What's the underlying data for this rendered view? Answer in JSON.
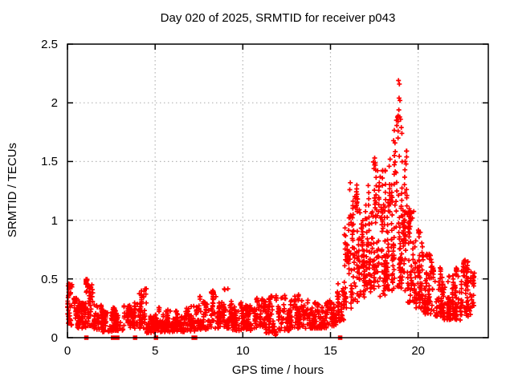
{
  "chart_data": {
    "type": "scatter",
    "title": "Day 020 of 2025, SRMTID for receiver p043",
    "xlabel": "GPS time / hours",
    "ylabel": "SRMTID / TECUs",
    "xlim": [
      0,
      24
    ],
    "ylim": [
      0,
      2.5
    ],
    "xticks": [
      0,
      5,
      10,
      15,
      20
    ],
    "xtick_labels": [
      "0",
      "5",
      "10",
      "15",
      "20"
    ],
    "yticks": [
      0,
      0.5,
      1,
      1.5,
      2,
      2.5
    ],
    "ytick_labels": [
      "0",
      "0.5",
      "1",
      "1.5",
      "2",
      "2.5"
    ],
    "grid": true,
    "legend": "none",
    "colors": {
      "marker": "#ff0000",
      "grid": "#b4b4b4",
      "axis": "#000000"
    },
    "marker": {
      "shape": "plus",
      "size": 7
    },
    "zero_marker": {
      "shape": "filled-square",
      "size": 5.5
    },
    "series_name": "SRMTID",
    "envelope_bins": [
      [
        0.0,
        0.3,
        0.1,
        0.46,
        40,
        1.6
      ],
      [
        0.3,
        0.7,
        0.08,
        0.34,
        48,
        1.8
      ],
      [
        0.7,
        1.05,
        0.08,
        0.3,
        45,
        1.8
      ],
      [
        1.05,
        1.45,
        0.1,
        0.5,
        52,
        1.6
      ],
      [
        1.45,
        2.0,
        0.07,
        0.28,
        62,
        1.8
      ],
      [
        2.0,
        2.6,
        0.05,
        0.22,
        62,
        1.8
      ],
      [
        2.6,
        3.2,
        0.06,
        0.26,
        62,
        1.8
      ],
      [
        3.2,
        3.8,
        0.08,
        0.28,
        60,
        1.8
      ],
      [
        3.8,
        4.5,
        0.08,
        0.42,
        66,
        2.0
      ],
      [
        4.5,
        5.2,
        0.04,
        0.2,
        64,
        1.8
      ],
      [
        5.2,
        5.9,
        0.05,
        0.26,
        64,
        2.0
      ],
      [
        5.9,
        6.6,
        0.05,
        0.24,
        64,
        1.9
      ],
      [
        6.6,
        7.3,
        0.05,
        0.28,
        64,
        1.9
      ],
      [
        7.3,
        8.0,
        0.07,
        0.36,
        64,
        2.0
      ],
      [
        8.0,
        8.7,
        0.08,
        0.4,
        64,
        2.0
      ],
      [
        8.7,
        9.4,
        0.08,
        0.42,
        64,
        2.0
      ],
      [
        9.4,
        10.0,
        0.06,
        0.3,
        58,
        1.8
      ],
      [
        10.0,
        10.6,
        0.06,
        0.28,
        58,
        1.8
      ],
      [
        10.6,
        11.3,
        0.08,
        0.34,
        64,
        1.9
      ],
      [
        11.3,
        12.0,
        0.04,
        0.36,
        62,
        1.9
      ],
      [
        12.0,
        12.7,
        0.06,
        0.36,
        64,
        1.9
      ],
      [
        12.7,
        13.4,
        0.08,
        0.38,
        64,
        1.9
      ],
      [
        13.4,
        14.1,
        0.08,
        0.32,
        64,
        1.8
      ],
      [
        14.1,
        14.8,
        0.08,
        0.3,
        64,
        1.8
      ],
      [
        14.8,
        15.4,
        0.1,
        0.32,
        56,
        1.8
      ],
      [
        15.4,
        15.8,
        0.14,
        0.55,
        42,
        1.5
      ],
      [
        15.8,
        16.2,
        0.25,
        1.05,
        52,
        1.5
      ],
      [
        16.2,
        16.6,
        0.3,
        1.3,
        56,
        1.5
      ],
      [
        16.6,
        17.0,
        0.33,
        1.1,
        56,
        1.5
      ],
      [
        17.0,
        17.4,
        0.38,
        1.3,
        58,
        1.5
      ],
      [
        17.4,
        17.8,
        0.4,
        1.5,
        60,
        1.5
      ],
      [
        17.8,
        18.2,
        0.35,
        1.45,
        60,
        1.5
      ],
      [
        18.2,
        18.6,
        0.4,
        1.55,
        60,
        1.5
      ],
      [
        18.6,
        19.0,
        0.42,
        1.9,
        64,
        1.5
      ],
      [
        19.0,
        19.4,
        0.4,
        1.6,
        62,
        1.5
      ],
      [
        19.4,
        19.8,
        0.3,
        1.1,
        62,
        1.5
      ],
      [
        19.8,
        20.3,
        0.25,
        0.92,
        64,
        1.6
      ],
      [
        20.3,
        20.8,
        0.2,
        0.72,
        64,
        1.6
      ],
      [
        20.8,
        21.4,
        0.18,
        0.6,
        68,
        1.7
      ],
      [
        21.4,
        22.0,
        0.15,
        0.56,
        68,
        1.7
      ],
      [
        22.0,
        22.5,
        0.15,
        0.6,
        58,
        1.7
      ],
      [
        22.5,
        23.0,
        0.18,
        0.66,
        58,
        1.6
      ],
      [
        23.0,
        23.2,
        0.25,
        0.56,
        20,
        1.5
      ]
    ],
    "peak_points": [
      [
        18.88,
        2.19
      ],
      [
        18.93,
        2.16
      ],
      [
        18.91,
        2.04
      ],
      [
        18.96,
        2.02
      ],
      [
        18.9,
        1.94
      ],
      [
        18.95,
        1.88
      ],
      [
        19.0,
        1.86
      ],
      [
        19.04,
        1.79
      ],
      [
        19.07,
        1.74
      ],
      [
        18.85,
        1.7
      ],
      [
        17.52,
        1.53
      ],
      [
        17.56,
        1.47
      ],
      [
        17.48,
        1.44
      ],
      [
        16.13,
        1.32
      ],
      [
        16.1,
        1.26
      ],
      [
        16.55,
        1.18
      ],
      [
        18.4,
        1.52
      ],
      [
        18.35,
        1.46
      ]
    ],
    "near_zero_points": [
      [
        11.86,
        0.02
      ],
      [
        11.9,
        0.03
      ],
      [
        11.88,
        0.05
      ]
    ],
    "zero_square_times": [
      1.08,
      2.6,
      2.84,
      3.86,
      5.05,
      7.2,
      7.28,
      15.55
    ]
  }
}
